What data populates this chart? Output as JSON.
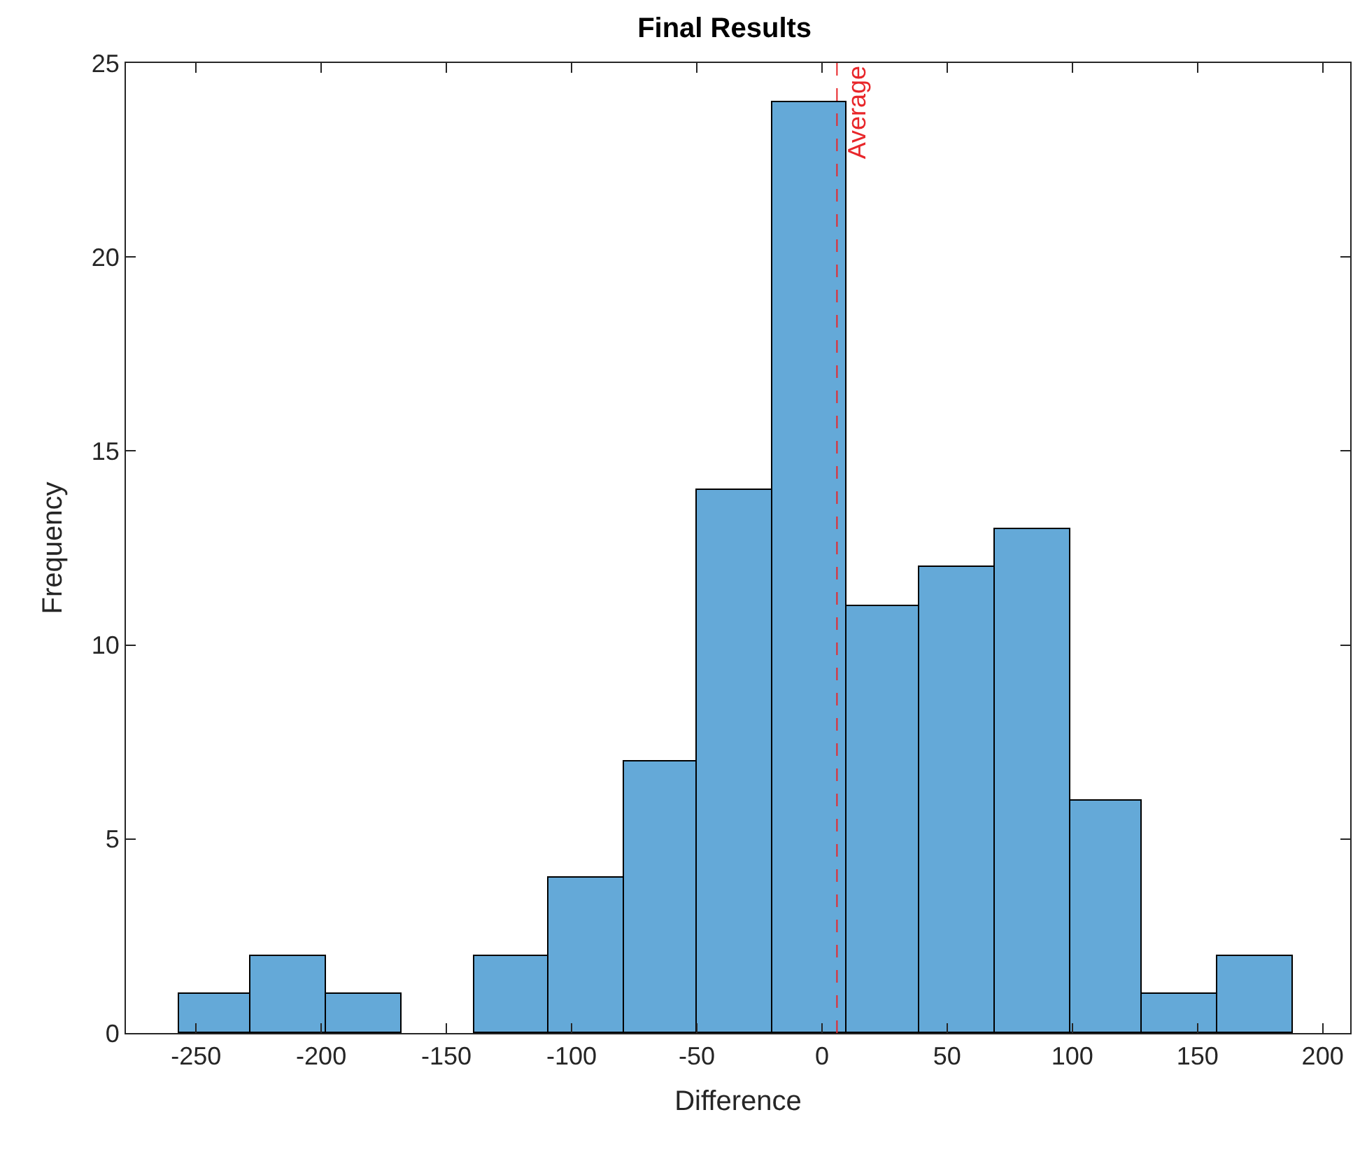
{
  "chart_data": {
    "type": "histogram",
    "title": "Final Results",
    "xlabel": "Difference",
    "ylabel": "Frequency",
    "bins": [
      -257,
      -228,
      -198,
      -168,
      -139,
      -109,
      -79,
      -50,
      -20,
      10,
      39,
      69,
      99,
      128,
      158,
      188
    ],
    "values": [
      1,
      2,
      1,
      0,
      2,
      4,
      7,
      14,
      24,
      11,
      12,
      13,
      6,
      1,
      2
    ],
    "color": "#64a9d8",
    "xlim": [
      -278,
      211
    ],
    "xticks": [
      -250,
      -200,
      -150,
      -100,
      -50,
      0,
      50,
      100,
      150,
      200
    ],
    "ylim": [
      0,
      25
    ],
    "yticks": [
      0,
      5,
      10,
      15,
      20,
      25
    ],
    "ref_lines": [
      {
        "axis": "x",
        "value": 6,
        "label": "Average",
        "color": "#e8262a",
        "line_style": "dashed"
      }
    ]
  }
}
